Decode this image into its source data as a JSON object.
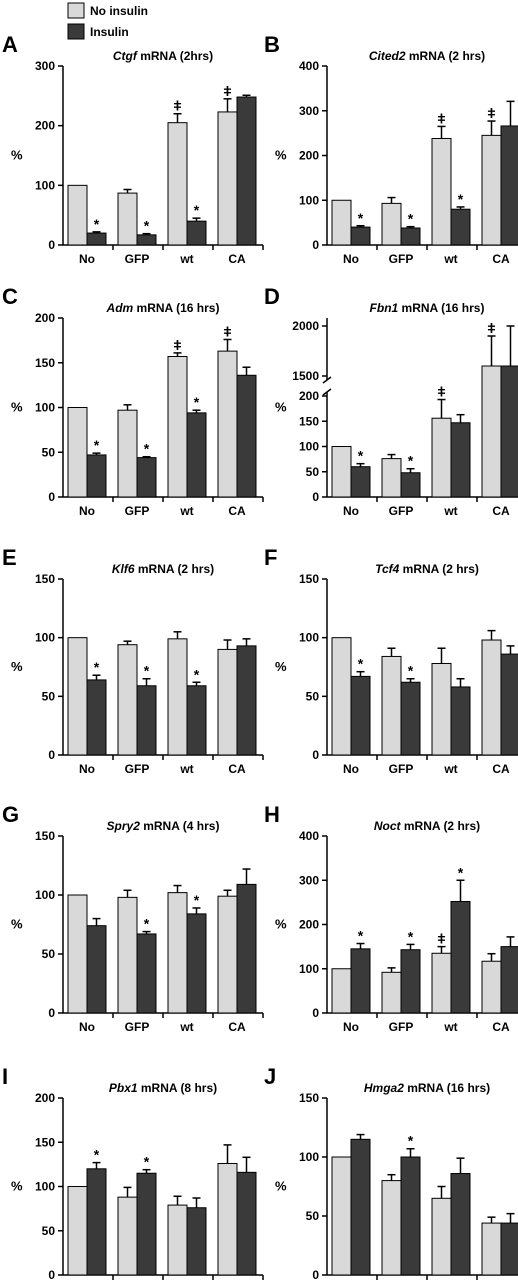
{
  "legend": {
    "entries": [
      {
        "label": "No insulin",
        "color": "#d9d9d9"
      },
      {
        "label": "Insulin",
        "color": "#3a3a3a"
      }
    ]
  },
  "colors": {
    "no_insulin": "#d9d9d9",
    "insulin": "#3a3a3a",
    "axis": "#000000"
  },
  "chart_data": [
    {
      "panel": "A",
      "type": "bar",
      "gene": "Ctgf",
      "title_rest": " mRNA (2hrs)",
      "ylabel": "%",
      "ylim": [
        0,
        300
      ],
      "yticks": [
        "0",
        "100",
        "200",
        "300"
      ],
      "categories": [
        "No",
        "GFP",
        "wt",
        "CA"
      ],
      "series": [
        {
          "name": "No insulin",
          "values": [
            100,
            87,
            205,
            223
          ],
          "errors": [
            0,
            6,
            15,
            22
          ]
        },
        {
          "name": "Insulin",
          "values": [
            20,
            17,
            40,
            248
          ],
          "errors": [
            2,
            2,
            5,
            3
          ]
        }
      ],
      "annotations": [
        {
          "category": 0,
          "series": 1,
          "mark": "*"
        },
        {
          "category": 1,
          "series": 1,
          "mark": "*"
        },
        {
          "category": 2,
          "series": 1,
          "mark": "*"
        },
        {
          "category": 2,
          "series": 0,
          "mark": "ǂ"
        },
        {
          "category": 3,
          "series": 0,
          "mark": "ǂ"
        }
      ]
    },
    {
      "panel": "B",
      "type": "bar",
      "gene": "Cited2",
      "title_rest": " mRNA (2 hrs)",
      "ylabel": "%",
      "ylim": [
        0,
        400
      ],
      "yticks": [
        "0",
        "100",
        "200",
        "300",
        "400"
      ],
      "categories": [
        "No",
        "GFP",
        "wt",
        "CA"
      ],
      "series": [
        {
          "name": "No insulin",
          "values": [
            100,
            93,
            238,
            245
          ],
          "errors": [
            0,
            13,
            27,
            32
          ]
        },
        {
          "name": "Insulin",
          "values": [
            40,
            38,
            80,
            266
          ],
          "errors": [
            3,
            3,
            5,
            55
          ]
        }
      ],
      "annotations": [
        {
          "category": 0,
          "series": 1,
          "mark": "*"
        },
        {
          "category": 1,
          "series": 1,
          "mark": "*"
        },
        {
          "category": 2,
          "series": 1,
          "mark": "*"
        },
        {
          "category": 2,
          "series": 0,
          "mark": "ǂ"
        },
        {
          "category": 3,
          "series": 0,
          "mark": "ǂ"
        }
      ]
    },
    {
      "panel": "C",
      "type": "bar",
      "gene": "Adm",
      "title_rest": " mRNA (16 hrs)",
      "ylabel": "%",
      "ylim": [
        0,
        200
      ],
      "yticks": [
        "0",
        "50",
        "100",
        "150",
        "200"
      ],
      "categories": [
        "No",
        "GFP",
        "wt",
        "CA"
      ],
      "series": [
        {
          "name": "No insulin",
          "values": [
            100,
            97,
            157,
            163
          ],
          "errors": [
            0,
            6,
            4,
            13
          ]
        },
        {
          "name": "Insulin",
          "values": [
            47,
            44,
            94,
            136
          ],
          "errors": [
            2,
            1,
            3,
            9
          ]
        }
      ],
      "annotations": [
        {
          "category": 0,
          "series": 1,
          "mark": "*"
        },
        {
          "category": 1,
          "series": 1,
          "mark": "*"
        },
        {
          "category": 2,
          "series": 1,
          "mark": "*"
        },
        {
          "category": 2,
          "series": 0,
          "mark": "ǂ"
        },
        {
          "category": 3,
          "series": 0,
          "mark": "ǂ"
        }
      ]
    },
    {
      "panel": "D",
      "type": "bar",
      "gene": "Fbn1",
      "title_rest": " mRNA (16 hrs)",
      "ylabel": "%",
      "ylim": [
        0,
        2000
      ],
      "axis_break": [
        200,
        1500
      ],
      "yticks": [
        "0",
        "50",
        "100",
        "150",
        "200",
        "1500",
        "2000"
      ],
      "categories": [
        "No",
        "GFP",
        "wt",
        "CA"
      ],
      "series": [
        {
          "name": "No insulin",
          "values": [
            100,
            76,
            156,
            1600
          ],
          "errors": [
            0,
            8,
            37,
            300
          ]
        },
        {
          "name": "Insulin",
          "values": [
            60,
            48,
            147,
            1600
          ],
          "errors": [
            6,
            8,
            16,
            400
          ]
        }
      ],
      "annotations": [
        {
          "category": 0,
          "series": 1,
          "mark": "*"
        },
        {
          "category": 1,
          "series": 1,
          "mark": "*"
        },
        {
          "category": 2,
          "series": 0,
          "mark": "ǂ"
        },
        {
          "category": 3,
          "series": 0,
          "mark": "ǂ"
        }
      ]
    },
    {
      "panel": "E",
      "type": "bar",
      "gene": "Klf6",
      "title_rest": " mRNA (2 hrs)",
      "ylabel": "%",
      "ylim": [
        0,
        150
      ],
      "yticks": [
        "0",
        "50",
        "100",
        "150"
      ],
      "categories": [
        "No",
        "GFP",
        "wt",
        "CA"
      ],
      "series": [
        {
          "name": "No insulin",
          "values": [
            100,
            94,
            99,
            90
          ],
          "errors": [
            0,
            3,
            6,
            8
          ]
        },
        {
          "name": "Insulin",
          "values": [
            64,
            59,
            59,
            93
          ],
          "errors": [
            4,
            6,
            3,
            6
          ]
        }
      ],
      "annotations": [
        {
          "category": 0,
          "series": 1,
          "mark": "*"
        },
        {
          "category": 1,
          "series": 1,
          "mark": "*"
        },
        {
          "category": 2,
          "series": 1,
          "mark": "*"
        }
      ]
    },
    {
      "panel": "F",
      "type": "bar",
      "gene": "Tcf4",
      "title_rest": " mRNA (2 hrs)",
      "ylabel": "%",
      "ylim": [
        0,
        150
      ],
      "yticks": [
        "0",
        "50",
        "100",
        "150"
      ],
      "categories": [
        "No",
        "GFP",
        "wt",
        "CA"
      ],
      "series": [
        {
          "name": "No insulin",
          "values": [
            100,
            84,
            78,
            98
          ],
          "errors": [
            0,
            7,
            13,
            8
          ]
        },
        {
          "name": "Insulin",
          "values": [
            67,
            62,
            58,
            86
          ],
          "errors": [
            4,
            3,
            7,
            7
          ]
        }
      ],
      "annotations": [
        {
          "category": 0,
          "series": 1,
          "mark": "*"
        },
        {
          "category": 1,
          "series": 1,
          "mark": "*"
        }
      ]
    },
    {
      "panel": "G",
      "type": "bar",
      "gene": "Spry2",
      "title_rest": " mRNA (4 hrs)",
      "ylabel": "%",
      "ylim": [
        0,
        150
      ],
      "yticks": [
        "0",
        "50",
        "100",
        "150"
      ],
      "categories": [
        "No",
        "GFP",
        "wt",
        "CA"
      ],
      "series": [
        {
          "name": "No insulin",
          "values": [
            100,
            98,
            102,
            99
          ],
          "errors": [
            0,
            6,
            6,
            5
          ]
        },
        {
          "name": "Insulin",
          "values": [
            74,
            67,
            84,
            109
          ],
          "errors": [
            6,
            2,
            5,
            13
          ]
        }
      ],
      "annotations": [
        {
          "category": 1,
          "series": 1,
          "mark": "*"
        },
        {
          "category": 2,
          "series": 1,
          "mark": "*"
        }
      ]
    },
    {
      "panel": "H",
      "type": "bar",
      "gene": "Noct",
      "title_rest": " mRNA (2 hrs)",
      "ylabel": "%",
      "ylim": [
        0,
        400
      ],
      "yticks": [
        "0",
        "100",
        "200",
        "300",
        "400"
      ],
      "categories": [
        "No",
        "GFP",
        "wt",
        "CA"
      ],
      "series": [
        {
          "name": "No insulin",
          "values": [
            100,
            92,
            135,
            117
          ],
          "errors": [
            0,
            10,
            15,
            17
          ]
        },
        {
          "name": "Insulin",
          "values": [
            145,
            143,
            252,
            150
          ],
          "errors": [
            12,
            12,
            48,
            22
          ]
        }
      ],
      "annotations": [
        {
          "category": 0,
          "series": 1,
          "mark": "*"
        },
        {
          "category": 1,
          "series": 1,
          "mark": "*"
        },
        {
          "category": 2,
          "series": 1,
          "mark": "*"
        },
        {
          "category": 2,
          "series": 0,
          "mark": "ǂ"
        }
      ]
    },
    {
      "panel": "I",
      "type": "bar",
      "gene": "Pbx1",
      "title_rest": " mRNA (8 hrs)",
      "ylabel": "%",
      "ylim": [
        0,
        200
      ],
      "yticks": [
        "0",
        "50",
        "100",
        "150",
        "200"
      ],
      "categories": [
        "No",
        "GFP",
        "wt",
        "CA"
      ],
      "series": [
        {
          "name": "No insulin",
          "values": [
            100,
            88,
            79,
            126
          ],
          "errors": [
            0,
            11,
            10,
            21
          ]
        },
        {
          "name": "Insulin",
          "values": [
            120,
            115,
            76,
            116
          ],
          "errors": [
            7,
            4,
            11,
            17
          ]
        }
      ],
      "annotations": [
        {
          "category": 0,
          "series": 1,
          "mark": "*"
        },
        {
          "category": 1,
          "series": 1,
          "mark": "*"
        }
      ]
    },
    {
      "panel": "J",
      "type": "bar",
      "gene": "Hmga2",
      "title_rest": " mRNA (16 hrs)",
      "ylabel": "%",
      "ylim": [
        0,
        150
      ],
      "yticks": [
        "0",
        "50",
        "100",
        "150"
      ],
      "categories": [
        "No",
        "GFP",
        "wt",
        "CA"
      ],
      "series": [
        {
          "name": "No insulin",
          "values": [
            100,
            80,
            65,
            44
          ],
          "errors": [
            0,
            5,
            10,
            5
          ]
        },
        {
          "name": "Insulin",
          "values": [
            115,
            100,
            86,
            44
          ],
          "errors": [
            4,
            7,
            13,
            8
          ]
        }
      ],
      "annotations": [
        {
          "category": 1,
          "series": 1,
          "mark": "*"
        }
      ]
    }
  ]
}
